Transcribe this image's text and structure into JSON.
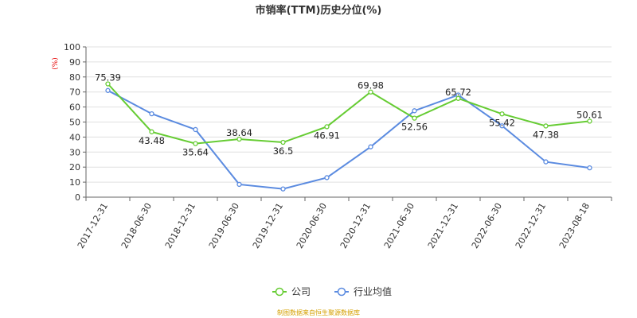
{
  "chart_data": {
    "type": "line",
    "title": "市销率(TTM)历史分位(%)",
    "y_unit": "(%)",
    "ylim": [
      0,
      100
    ],
    "yticks": [
      0,
      10,
      20,
      30,
      40,
      50,
      60,
      70,
      80,
      90,
      100
    ],
    "grid": true,
    "legend_position": "bottom-center",
    "categories": [
      "2017-12-31",
      "2018-06-30",
      "2018-12-31",
      "2019-06-30",
      "2019-12-31",
      "2020-06-30",
      "2020-12-31",
      "2021-06-30",
      "2021-12-31",
      "2022-06-30",
      "2022-12-31",
      "2023-08-18"
    ],
    "series": [
      {
        "name": "公司",
        "color": "#66cc33",
        "values": [
          75.39,
          43.48,
          35.64,
          38.64,
          36.5,
          46.91,
          69.98,
          52.56,
          65.72,
          55.42,
          47.38,
          50.61
        ],
        "labels": [
          "75.39",
          "43.48",
          "35.64",
          "38.64",
          "36.5",
          "46.91",
          "69.98",
          "52.56",
          "65.72",
          "55.42",
          "47.38",
          "50.61"
        ]
      },
      {
        "name": "行业均值",
        "color": "#5b8be0",
        "values": [
          71,
          55.5,
          45,
          8.5,
          5.5,
          13,
          33.5,
          57.5,
          68,
          47.5,
          23.5,
          19.5
        ]
      }
    ],
    "source": "制图数据来自恒生聚源数据库"
  }
}
